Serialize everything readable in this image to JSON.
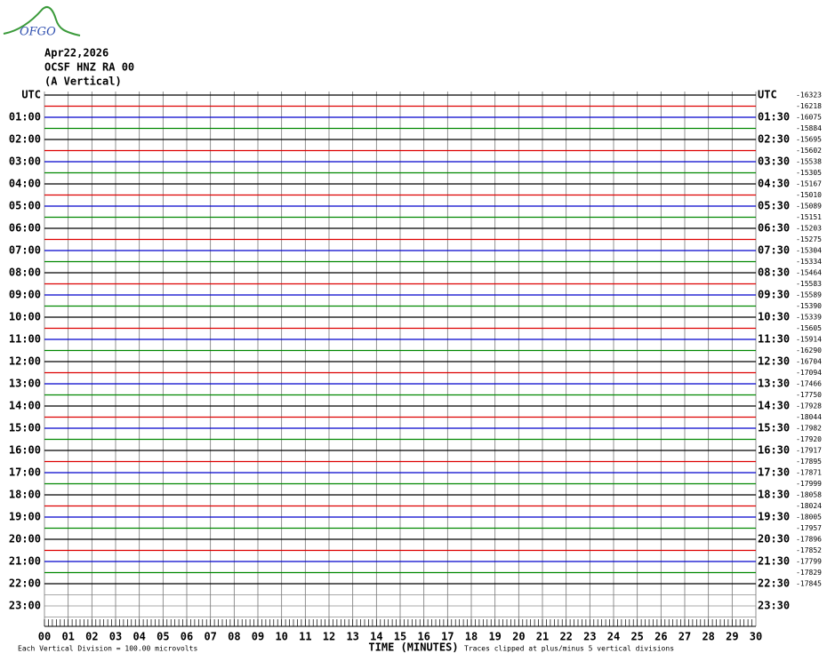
{
  "header": {
    "logo": "OFGO",
    "date": "Apr22,2026",
    "station": "OCSF HNZ RA 00",
    "component": "(A Vertical)"
  },
  "left_labels": [
    "UTC",
    "01:00",
    "02:00",
    "03:00",
    "04:00",
    "05:00",
    "06:00",
    "07:00",
    "08:00",
    "09:00",
    "10:00",
    "11:00",
    "12:00",
    "13:00",
    "14:00",
    "15:00",
    "16:00",
    "17:00",
    "18:00",
    "19:00",
    "20:00",
    "21:00",
    "22:00",
    "23:00"
  ],
  "right_labels": [
    "UTC",
    "01:30",
    "02:30",
    "03:30",
    "04:30",
    "05:30",
    "06:30",
    "07:30",
    "08:30",
    "09:30",
    "10:30",
    "11:30",
    "12:30",
    "13:30",
    "14:30",
    "15:30",
    "16:30",
    "17:30",
    "18:30",
    "19:30",
    "20:30",
    "21:30",
    "22:30",
    "23:30"
  ],
  "offsets": [
    -16323,
    -16218,
    -16075,
    -15884,
    -15695,
    -15602,
    -15538,
    -15305,
    -15167,
    -15010,
    -15089,
    -15151,
    -15203,
    -15275,
    -15304,
    -15334,
    -15464,
    -15583,
    -15589,
    -15390,
    -15339,
    -15605,
    -15914,
    -16290,
    -16704,
    -17094,
    -17466,
    -17750,
    -17928,
    -18044,
    -17982,
    -17920,
    -17917,
    -17895,
    -17871,
    -17999,
    -18058,
    -18024,
    -18005,
    -17957,
    -17896,
    -17852,
    -17799,
    -17829,
    -17845
  ],
  "x_ticks": [
    "00",
    "01",
    "02",
    "03",
    "04",
    "05",
    "06",
    "07",
    "08",
    "09",
    "10",
    "11",
    "12",
    "13",
    "14",
    "15",
    "16",
    "17",
    "18",
    "19",
    "20",
    "21",
    "22",
    "23",
    "24",
    "25",
    "26",
    "27",
    "28",
    "29",
    "30"
  ],
  "footer": {
    "scale": "Each Vertical Division =  100.00 microvolts",
    "x_title": "TIME (MINUTES)",
    "clip": "Traces clipped at plus/minus 5 vertical divisions"
  }
}
